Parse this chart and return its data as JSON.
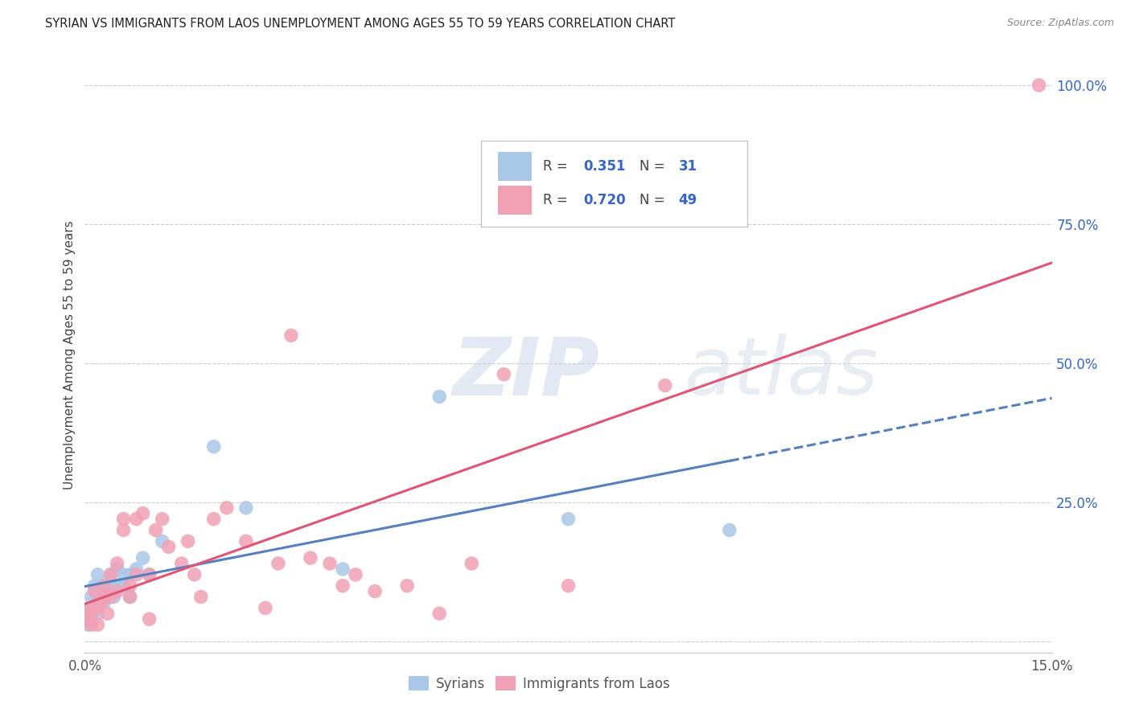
{
  "title": "SYRIAN VS IMMIGRANTS FROM LAOS UNEMPLOYMENT AMONG AGES 55 TO 59 YEARS CORRELATION CHART",
  "source": "Source: ZipAtlas.com",
  "ylabel": "Unemployment Among Ages 55 to 59 years",
  "right_yticks": [
    0.0,
    0.25,
    0.5,
    0.75,
    1.0
  ],
  "right_yticklabels": [
    "",
    "25.0%",
    "50.0%",
    "75.0%",
    "100.0%"
  ],
  "bottom_legend": [
    "Syrians",
    "Immigrants from Laos"
  ],
  "R_syrian": "0.351",
  "N_syrian": "31",
  "R_laos": "0.720",
  "N_laos": "49",
  "color_syrian": "#aac8e8",
  "color_laos": "#f2a0b5",
  "color_syrian_line": "#5580c0",
  "color_laos_line": "#e05575",
  "color_value_text": "#3366cc",
  "color_label_text": "#444444",
  "color_axis_text": "#555555",
  "color_title": "#222222",
  "color_source": "#888888",
  "color_grid": "#cccccc",
  "color_watermark": "#cdd8e8",
  "watermark_zip": "ZIP",
  "watermark_atlas": "atlas",
  "syrians_x": [
    0.0005,
    0.001,
    0.001,
    0.001,
    0.0015,
    0.002,
    0.002,
    0.002,
    0.0025,
    0.003,
    0.003,
    0.0035,
    0.004,
    0.004,
    0.0045,
    0.005,
    0.005,
    0.006,
    0.006,
    0.007,
    0.007,
    0.008,
    0.009,
    0.01,
    0.012,
    0.02,
    0.025,
    0.04,
    0.055,
    0.075,
    0.1
  ],
  "syrians_y": [
    0.03,
    0.05,
    0.08,
    0.06,
    0.1,
    0.05,
    0.08,
    0.12,
    0.08,
    0.07,
    0.1,
    0.09,
    0.1,
    0.12,
    0.08,
    0.1,
    0.13,
    0.12,
    0.1,
    0.12,
    0.08,
    0.13,
    0.15,
    0.12,
    0.18,
    0.35,
    0.24,
    0.13,
    0.44,
    0.22,
    0.2
  ],
  "laos_x": [
    0.0005,
    0.001,
    0.001,
    0.001,
    0.0015,
    0.002,
    0.002,
    0.0025,
    0.003,
    0.003,
    0.0035,
    0.004,
    0.004,
    0.005,
    0.005,
    0.006,
    0.006,
    0.007,
    0.007,
    0.008,
    0.008,
    0.009,
    0.01,
    0.01,
    0.011,
    0.012,
    0.013,
    0.015,
    0.016,
    0.017,
    0.018,
    0.02,
    0.022,
    0.025,
    0.028,
    0.03,
    0.032,
    0.035,
    0.038,
    0.04,
    0.042,
    0.045,
    0.05,
    0.055,
    0.06,
    0.065,
    0.075,
    0.09,
    0.148
  ],
  "laos_y": [
    0.04,
    0.05,
    0.03,
    0.06,
    0.09,
    0.06,
    0.03,
    0.07,
    0.08,
    0.1,
    0.05,
    0.08,
    0.12,
    0.09,
    0.14,
    0.2,
    0.22,
    0.1,
    0.08,
    0.12,
    0.22,
    0.23,
    0.04,
    0.12,
    0.2,
    0.22,
    0.17,
    0.14,
    0.18,
    0.12,
    0.08,
    0.22,
    0.24,
    0.18,
    0.06,
    0.14,
    0.55,
    0.15,
    0.14,
    0.1,
    0.12,
    0.09,
    0.1,
    0.05,
    0.14,
    0.48,
    0.1,
    0.46,
    1.0
  ],
  "xmin": 0.0,
  "xmax": 0.15,
  "ymin": -0.02,
  "ymax": 1.05,
  "background": "#ffffff"
}
